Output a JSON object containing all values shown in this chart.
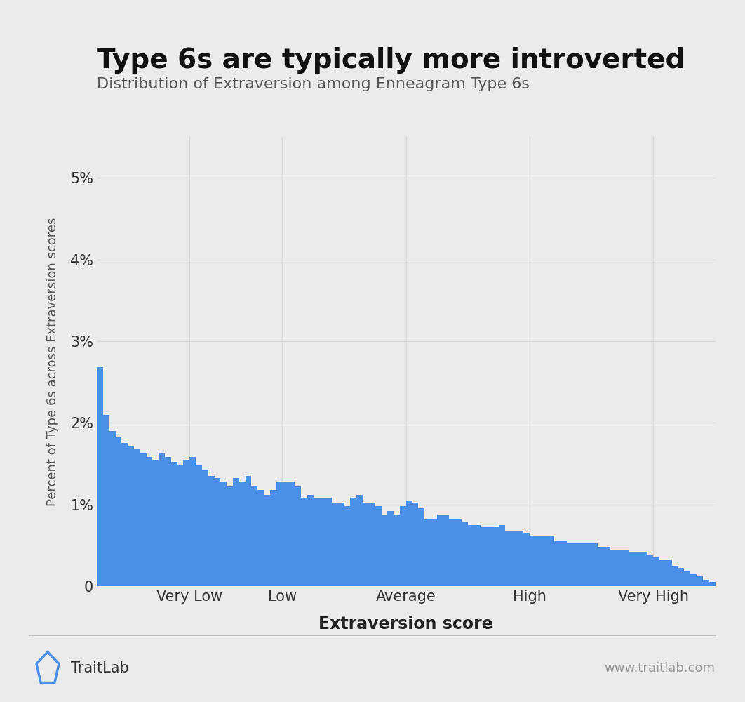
{
  "title": "Type 6s are typically more introverted",
  "subtitle": "Distribution of Extraversion among Enneagram Type 6s",
  "xlabel": "Extraversion score",
  "ylabel": "Percent of Type 6s across Extraversion scores",
  "xtick_labels": [
    "Very Low",
    "Low",
    "Average",
    "High",
    "Very High"
  ],
  "ylim": [
    0,
    0.055
  ],
  "yticks": [
    0,
    0.01,
    0.02,
    0.03,
    0.04,
    0.05
  ],
  "ytick_labels": [
    "0",
    "1%",
    "2%",
    "3%",
    "4%",
    "5%"
  ],
  "bar_color": "#4a8fe8",
  "background_color": "#ebebeb",
  "bar_values": [
    0.0268,
    0.021,
    0.019,
    0.0182,
    0.0175,
    0.0172,
    0.0168,
    0.0162,
    0.0158,
    0.0155,
    0.0162,
    0.0158,
    0.0152,
    0.0148,
    0.0155,
    0.0158,
    0.0148,
    0.0142,
    0.0135,
    0.0132,
    0.0128,
    0.0122,
    0.0132,
    0.0128,
    0.0135,
    0.0122,
    0.0118,
    0.0112,
    0.0118,
    0.0128,
    0.0128,
    0.0128,
    0.0122,
    0.0108,
    0.0112,
    0.0108,
    0.0108,
    0.0108,
    0.0102,
    0.0102,
    0.0098,
    0.0108,
    0.0112,
    0.0102,
    0.0102,
    0.0098,
    0.0088,
    0.0092,
    0.0088,
    0.0098,
    0.0105,
    0.0102,
    0.0095,
    0.0082,
    0.0082,
    0.0088,
    0.0088,
    0.0082,
    0.0082,
    0.0078,
    0.0075,
    0.0075,
    0.0072,
    0.0072,
    0.0072,
    0.0075,
    0.0068,
    0.0068,
    0.0068,
    0.0065,
    0.0062,
    0.0062,
    0.0062,
    0.0062,
    0.0055,
    0.0055,
    0.0052,
    0.0052,
    0.0052,
    0.0052,
    0.0052,
    0.0048,
    0.0048,
    0.0045,
    0.0045,
    0.0045,
    0.0042,
    0.0042,
    0.0042,
    0.0038,
    0.0035,
    0.0032,
    0.0032,
    0.0025,
    0.0022,
    0.0018,
    0.0015,
    0.0012,
    0.0008,
    0.0005
  ],
  "traitlab_text": "TraitLab",
  "website_text": "www.traitlab.com",
  "footer_line_color": "#bbbbbb",
  "grid_color": "#d8d8d8",
  "icon_color": "#4a8fe8",
  "title_fontsize": 28,
  "subtitle_fontsize": 16,
  "xlabel_fontsize": 17,
  "ylabel_fontsize": 13,
  "tick_fontsize": 15
}
